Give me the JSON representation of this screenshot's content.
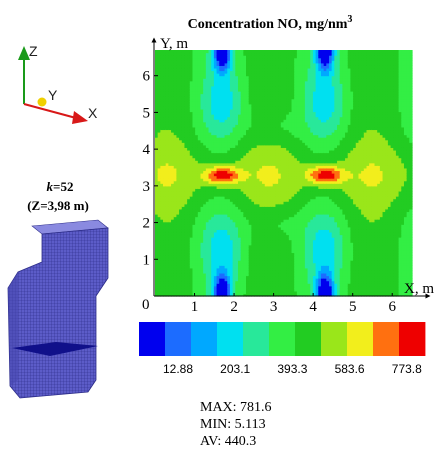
{
  "chart_data": {
    "type": "heatmap",
    "title": "Concentration NO, mg/nm",
    "title_superscript": "3",
    "xlabel": "X, m",
    "ylabel": "Y, m",
    "xlim": [
      0,
      6.5
    ],
    "ylim": [
      0,
      6.7
    ],
    "xticks": [
      "0",
      "1",
      "2",
      "3",
      "4",
      "5",
      "6"
    ],
    "yticks": [
      "1",
      "2",
      "3",
      "4",
      "5",
      "6"
    ],
    "grid": false,
    "colorbar": {
      "colors": [
        "#0000ee",
        "#1c6cff",
        "#00a8ff",
        "#00e0f0",
        "#28e89a",
        "#33ee44",
        "#22cc22",
        "#9ae61a",
        "#f2ee1c",
        "#ff7010",
        "#ee0000"
      ],
      "tick_labels": [
        "12.88",
        "203.1",
        "393.3",
        "583.6",
        "773.8"
      ]
    },
    "stats": {
      "max": "MAX: 781.6",
      "min": "MIN: 5.113",
      "av": "AV: 440.3"
    },
    "hotspots_x": [
      1.7,
      4.3
    ],
    "hotspots_y": 3.3
  },
  "triad": {
    "z": "Z",
    "y": "Y",
    "x": "X"
  },
  "slice": {
    "k_prefix": "k",
    "k_value": "=52",
    "z_label": "(Z=3,98 m)"
  }
}
